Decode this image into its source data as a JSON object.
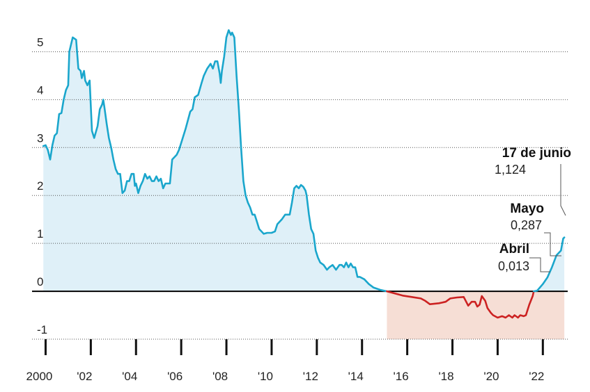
{
  "chart_data": {
    "type": "area",
    "title": "",
    "xlabel": "",
    "ylabel": "",
    "ylim": [
      -1,
      5.5
    ],
    "xlim": [
      1999.4,
      2023.1
    ],
    "grid": true,
    "y_ticks": [
      {
        "value": 5,
        "label": "5"
      },
      {
        "value": 4,
        "label": "4"
      },
      {
        "value": 3,
        "label": "3"
      },
      {
        "value": 2,
        "label": "2"
      },
      {
        "value": 1,
        "label": "1"
      },
      {
        "value": 0,
        "label": "0"
      },
      {
        "value": -1,
        "label": "-1"
      }
    ],
    "x_ticks": [
      {
        "value": 2000,
        "label": "2000"
      },
      {
        "value": 2002,
        "label": "'02"
      },
      {
        "value": 2004,
        "label": "'04"
      },
      {
        "value": 2006,
        "label": "'06"
      },
      {
        "value": 2008,
        "label": "'08"
      },
      {
        "value": 2010,
        "label": "'10"
      },
      {
        "value": 2012,
        "label": "'12"
      },
      {
        "value": 2014,
        "label": "'14"
      },
      {
        "value": 2016,
        "label": "'16"
      },
      {
        "value": 2018,
        "label": "'18"
      },
      {
        "value": 2020,
        "label": "'20"
      },
      {
        "value": 2022,
        "label": "'22"
      }
    ],
    "colors": {
      "positive_line": "#1aa6cc",
      "positive_fill": "#dff0f8",
      "negative_line": "#cc2222",
      "negative_fill": "#f6ded5",
      "zero_line": "#000000",
      "grid": "#555555"
    },
    "series": [
      {
        "values": [
          [
            1999.9,
            3.03
          ],
          [
            2000.0,
            3.05
          ],
          [
            2000.1,
            2.95
          ],
          [
            2000.2,
            2.75
          ],
          [
            2000.3,
            3.05
          ],
          [
            2000.4,
            3.25
          ],
          [
            2000.5,
            3.3
          ],
          [
            2000.6,
            3.7
          ],
          [
            2000.7,
            3.72
          ],
          [
            2000.8,
            4.0
          ],
          [
            2000.9,
            4.2
          ],
          [
            2001.0,
            4.3
          ],
          [
            2001.05,
            5.0
          ],
          [
            2001.2,
            5.3
          ],
          [
            2001.35,
            5.25
          ],
          [
            2001.45,
            4.65
          ],
          [
            2001.55,
            4.6
          ],
          [
            2001.6,
            4.45
          ],
          [
            2001.7,
            4.6
          ],
          [
            2001.75,
            4.4
          ],
          [
            2001.85,
            4.3
          ],
          [
            2001.95,
            4.4
          ],
          [
            2002.05,
            3.35
          ],
          [
            2002.15,
            3.2
          ],
          [
            2002.3,
            3.45
          ],
          [
            2002.4,
            3.8
          ],
          [
            2002.5,
            3.9
          ],
          [
            2002.55,
            4.0
          ],
          [
            2002.6,
            3.85
          ],
          [
            2002.7,
            3.5
          ],
          [
            2002.8,
            3.2
          ],
          [
            2002.9,
            3.0
          ],
          [
            2003.0,
            2.75
          ],
          [
            2003.1,
            2.55
          ],
          [
            2003.2,
            2.45
          ],
          [
            2003.3,
            2.45
          ],
          [
            2003.4,
            2.05
          ],
          [
            2003.5,
            2.1
          ],
          [
            2003.6,
            2.3
          ],
          [
            2003.7,
            2.3
          ],
          [
            2003.8,
            2.45
          ],
          [
            2003.9,
            2.45
          ],
          [
            2003.95,
            2.2
          ],
          [
            2004.0,
            2.25
          ],
          [
            2004.1,
            2.05
          ],
          [
            2004.2,
            2.2
          ],
          [
            2004.3,
            2.3
          ],
          [
            2004.4,
            2.45
          ],
          [
            2004.5,
            2.35
          ],
          [
            2004.6,
            2.4
          ],
          [
            2004.7,
            2.3
          ],
          [
            2004.8,
            2.3
          ],
          [
            2004.9,
            2.4
          ],
          [
            2005.0,
            2.3
          ],
          [
            2005.1,
            2.35
          ],
          [
            2005.2,
            2.15
          ],
          [
            2005.3,
            2.25
          ],
          [
            2005.4,
            2.25
          ],
          [
            2005.5,
            2.25
          ],
          [
            2005.6,
            2.75
          ],
          [
            2005.8,
            2.85
          ],
          [
            2005.9,
            2.95
          ],
          [
            2006.0,
            3.1
          ],
          [
            2006.2,
            3.4
          ],
          [
            2006.4,
            3.75
          ],
          [
            2006.5,
            3.8
          ],
          [
            2006.6,
            4.05
          ],
          [
            2006.75,
            4.1
          ],
          [
            2006.9,
            4.35
          ],
          [
            2007.0,
            4.5
          ],
          [
            2007.15,
            4.65
          ],
          [
            2007.3,
            4.75
          ],
          [
            2007.4,
            4.65
          ],
          [
            2007.5,
            4.8
          ],
          [
            2007.6,
            4.8
          ],
          [
            2007.7,
            4.55
          ],
          [
            2007.75,
            4.35
          ],
          [
            2007.8,
            4.6
          ],
          [
            2007.9,
            4.9
          ],
          [
            2008.0,
            5.3
          ],
          [
            2008.1,
            5.45
          ],
          [
            2008.2,
            5.35
          ],
          [
            2008.25,
            5.4
          ],
          [
            2008.35,
            5.3
          ],
          [
            2008.45,
            4.5
          ],
          [
            2008.55,
            3.8
          ],
          [
            2008.65,
            3.0
          ],
          [
            2008.75,
            2.3
          ],
          [
            2008.85,
            2.0
          ],
          [
            2008.95,
            1.85
          ],
          [
            2009.05,
            1.75
          ],
          [
            2009.15,
            1.6
          ],
          [
            2009.25,
            1.6
          ],
          [
            2009.35,
            1.45
          ],
          [
            2009.45,
            1.3
          ],
          [
            2009.55,
            1.25
          ],
          [
            2009.65,
            1.2
          ],
          [
            2009.8,
            1.22
          ],
          [
            2010.0,
            1.22
          ],
          [
            2010.15,
            1.25
          ],
          [
            2010.25,
            1.4
          ],
          [
            2010.35,
            1.45
          ],
          [
            2010.45,
            1.5
          ],
          [
            2010.6,
            1.6
          ],
          [
            2010.7,
            1.6
          ],
          [
            2010.8,
            1.6
          ],
          [
            2010.9,
            1.85
          ],
          [
            2011.0,
            2.15
          ],
          [
            2011.1,
            2.2
          ],
          [
            2011.2,
            2.15
          ],
          [
            2011.3,
            2.22
          ],
          [
            2011.4,
            2.18
          ],
          [
            2011.5,
            2.1
          ],
          [
            2011.55,
            2.0
          ],
          [
            2011.65,
            1.6
          ],
          [
            2011.75,
            1.3
          ],
          [
            2011.85,
            1.2
          ],
          [
            2011.95,
            0.85
          ],
          [
            2012.05,
            0.7
          ],
          [
            2012.15,
            0.6
          ],
          [
            2012.3,
            0.55
          ],
          [
            2012.45,
            0.45
          ],
          [
            2012.55,
            0.5
          ],
          [
            2012.7,
            0.55
          ],
          [
            2012.85,
            0.45
          ],
          [
            2013.0,
            0.55
          ],
          [
            2013.1,
            0.55
          ],
          [
            2013.2,
            0.5
          ],
          [
            2013.3,
            0.6
          ],
          [
            2013.4,
            0.5
          ],
          [
            2013.5,
            0.58
          ],
          [
            2013.6,
            0.5
          ],
          [
            2013.7,
            0.5
          ],
          [
            2013.8,
            0.3
          ],
          [
            2013.9,
            0.3
          ],
          [
            2014.1,
            0.25
          ],
          [
            2014.3,
            0.15
          ],
          [
            2014.5,
            0.08
          ],
          [
            2014.8,
            0.03
          ],
          [
            2015.1,
            0.0
          ]
        ]
      },
      {
        "values": [
          [
            2015.1,
            0.0
          ],
          [
            2015.4,
            -0.04
          ],
          [
            2015.8,
            -0.09
          ],
          [
            2016.2,
            -0.12
          ],
          [
            2016.6,
            -0.15
          ],
          [
            2016.8,
            -0.2
          ],
          [
            2017.0,
            -0.27
          ],
          [
            2017.4,
            -0.25
          ],
          [
            2017.7,
            -0.22
          ],
          [
            2017.9,
            -0.15
          ],
          [
            2018.2,
            -0.13
          ],
          [
            2018.5,
            -0.12
          ],
          [
            2018.7,
            -0.3
          ],
          [
            2018.85,
            -0.22
          ],
          [
            2019.0,
            -0.22
          ],
          [
            2019.1,
            -0.32
          ],
          [
            2019.2,
            -0.28
          ],
          [
            2019.3,
            -0.1
          ],
          [
            2019.45,
            -0.2
          ],
          [
            2019.55,
            -0.35
          ],
          [
            2019.7,
            -0.45
          ],
          [
            2019.8,
            -0.5
          ],
          [
            2020.0,
            -0.55
          ],
          [
            2020.2,
            -0.52
          ],
          [
            2020.35,
            -0.55
          ],
          [
            2020.5,
            -0.5
          ],
          [
            2020.65,
            -0.55
          ],
          [
            2020.75,
            -0.5
          ],
          [
            2020.9,
            -0.55
          ],
          [
            2021.0,
            -0.5
          ],
          [
            2021.15,
            -0.52
          ],
          [
            2021.25,
            -0.5
          ],
          [
            2021.4,
            -0.28
          ],
          [
            2021.55,
            -0.1
          ],
          [
            2021.6,
            0.0
          ]
        ]
      },
      {
        "values": [
          [
            2021.6,
            0.0
          ],
          [
            2021.75,
            0.013
          ],
          [
            2022.0,
            0.15
          ],
          [
            2022.2,
            0.287
          ],
          [
            2022.4,
            0.5
          ],
          [
            2022.6,
            0.75
          ],
          [
            2022.8,
            0.85
          ],
          [
            2022.9,
            1.1
          ],
          [
            2022.95,
            1.124
          ]
        ]
      }
    ],
    "negative_region": {
      "x_start": 2015.1,
      "x_end": 2022.95,
      "y_min": -1
    },
    "annotations": [
      {
        "title": "17 de junio",
        "value": "1,124"
      },
      {
        "title": "Mayo",
        "value": "0,287"
      },
      {
        "title": "Abril",
        "value": "0,013"
      }
    ]
  }
}
